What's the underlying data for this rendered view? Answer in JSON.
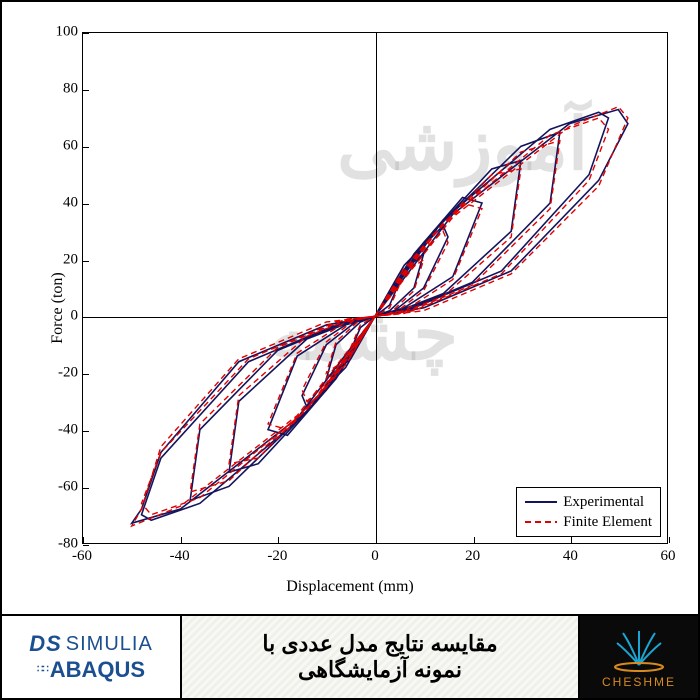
{
  "chart": {
    "type": "line",
    "xlabel": "Displacement (mm)",
    "ylabel": "Force (ton)",
    "xlabel_fontsize": 16,
    "ylabel_fontsize": 16,
    "tick_fontsize": 15,
    "xlim": [
      -60,
      60
    ],
    "ylim": [
      -80,
      100
    ],
    "xtick_step": 20,
    "ytick_step": 20,
    "xticks": [
      -60,
      -40,
      -20,
      0,
      20,
      40,
      60
    ],
    "yticks": [
      -80,
      -60,
      -40,
      -20,
      0,
      20,
      40,
      60,
      80,
      100
    ],
    "background_color": "#ffffff",
    "axis_color": "#000000",
    "border_color": "#000000",
    "grid": false,
    "watermark": {
      "line1": "آموزشی",
      "line2": "چشمه",
      "color": "rgba(170,170,170,0.35)",
      "fontsize": 72
    },
    "legend": {
      "position": "bottom-right",
      "border_color": "#000000",
      "items": [
        {
          "label": "Experimental",
          "color": "#14145c",
          "style": "solid",
          "width": 1.6
        },
        {
          "label": "Finite Element",
          "color": "#e00000",
          "style": "dashed",
          "width": 1.4
        }
      ]
    },
    "series": [
      {
        "name": "Experimental",
        "color": "#14145c",
        "style": "solid",
        "width": 1.6,
        "loops": [
          [
            [
              0,
              0
            ],
            [
              3,
              8
            ],
            [
              5,
              12
            ],
            [
              3,
              4
            ],
            [
              0,
              0
            ],
            [
              -3,
              -8
            ],
            [
              -5,
              -12
            ],
            [
              -3,
              -4
            ],
            [
              0,
              0
            ]
          ],
          [
            [
              0,
              0
            ],
            [
              5,
              15
            ],
            [
              10,
              22
            ],
            [
              8,
              10
            ],
            [
              3,
              2
            ],
            [
              0,
              0
            ],
            [
              -5,
              -15
            ],
            [
              -10,
              -22
            ],
            [
              -8,
              -10
            ],
            [
              -3,
              -2
            ],
            [
              0,
              0
            ]
          ],
          [
            [
              0,
              0
            ],
            [
              6,
              18
            ],
            [
              14,
              32
            ],
            [
              15,
              28
            ],
            [
              10,
              10
            ],
            [
              4,
              2
            ],
            [
              0,
              0
            ],
            [
              -6,
              -18
            ],
            [
              -14,
              -32
            ],
            [
              -15,
              -28
            ],
            [
              -10,
              -10
            ],
            [
              -4,
              -2
            ],
            [
              0,
              0
            ]
          ],
          [
            [
              0,
              0
            ],
            [
              8,
              22
            ],
            [
              18,
              42
            ],
            [
              22,
              40
            ],
            [
              16,
              14
            ],
            [
              6,
              3
            ],
            [
              0,
              0
            ],
            [
              -8,
              -22
            ],
            [
              -18,
              -42
            ],
            [
              -22,
              -40
            ],
            [
              -16,
              -14
            ],
            [
              -6,
              -3
            ],
            [
              0,
              0
            ]
          ],
          [
            [
              0,
              0
            ],
            [
              10,
              26
            ],
            [
              24,
              52
            ],
            [
              30,
              55
            ],
            [
              28,
              30
            ],
            [
              14,
              8
            ],
            [
              5,
              2
            ],
            [
              0,
              0
            ],
            [
              -10,
              -26
            ],
            [
              -24,
              -52
            ],
            [
              -30,
              -55
            ],
            [
              -28,
              -30
            ],
            [
              -14,
              -8
            ],
            [
              -5,
              -2
            ],
            [
              0,
              0
            ]
          ],
          [
            [
              0,
              0
            ],
            [
              12,
              30
            ],
            [
              30,
              60
            ],
            [
              38,
              65
            ],
            [
              36,
              40
            ],
            [
              20,
              12
            ],
            [
              6,
              2
            ],
            [
              0,
              0
            ],
            [
              -12,
              -30
            ],
            [
              -30,
              -60
            ],
            [
              -38,
              -65
            ],
            [
              -36,
              -40
            ],
            [
              -20,
              -12
            ],
            [
              -6,
              -2
            ],
            [
              0,
              0
            ]
          ],
          [
            [
              0,
              0
            ],
            [
              14,
              34
            ],
            [
              36,
              66
            ],
            [
              46,
              72
            ],
            [
              48,
              70
            ],
            [
              44,
              50
            ],
            [
              26,
              16
            ],
            [
              8,
              3
            ],
            [
              0,
              0
            ],
            [
              -14,
              -34
            ],
            [
              -36,
              -66
            ],
            [
              -46,
              -72
            ],
            [
              -48,
              -70
            ],
            [
              -44,
              -50
            ],
            [
              -26,
              -16
            ],
            [
              -8,
              -3
            ],
            [
              0,
              0
            ]
          ],
          [
            [
              0,
              0
            ],
            [
              16,
              36
            ],
            [
              40,
              68
            ],
            [
              50,
              73
            ],
            [
              52,
              68
            ],
            [
              46,
              48
            ],
            [
              28,
              16
            ],
            [
              10,
              3
            ],
            [
              0,
              0
            ],
            [
              -16,
              -36
            ],
            [
              -40,
              -68
            ],
            [
              -50,
              -73
            ],
            [
              -48,
              -68
            ],
            [
              -44,
              -48
            ],
            [
              -28,
              -16
            ],
            [
              -10,
              -3
            ],
            [
              0,
              0
            ]
          ]
        ]
      },
      {
        "name": "Finite Element",
        "color": "#e00000",
        "style": "dashed",
        "width": 1.4,
        "loops": [
          [
            [
              0,
              0
            ],
            [
              3,
              7
            ],
            [
              5,
              11
            ],
            [
              3,
              3
            ],
            [
              0,
              0
            ],
            [
              -3,
              -7
            ],
            [
              -5,
              -11
            ],
            [
              -3,
              -3
            ],
            [
              0,
              0
            ]
          ],
          [
            [
              0,
              0
            ],
            [
              5,
              14
            ],
            [
              10,
              20
            ],
            [
              8,
              9
            ],
            [
              3,
              1
            ],
            [
              0,
              0
            ],
            [
              -5,
              -14
            ],
            [
              -10,
              -20
            ],
            [
              -8,
              -9
            ],
            [
              -3,
              -1
            ],
            [
              0,
              0
            ]
          ],
          [
            [
              0,
              0
            ],
            [
              6,
              17
            ],
            [
              14,
              30
            ],
            [
              15,
              26
            ],
            [
              10,
              9
            ],
            [
              4,
              1
            ],
            [
              0,
              0
            ],
            [
              -6,
              -17
            ],
            [
              -14,
              -30
            ],
            [
              -15,
              -26
            ],
            [
              -10,
              -9
            ],
            [
              -4,
              -1
            ],
            [
              0,
              0
            ]
          ],
          [
            [
              0,
              0
            ],
            [
              8,
              21
            ],
            [
              18,
              40
            ],
            [
              22,
              38
            ],
            [
              16,
              13
            ],
            [
              6,
              2
            ],
            [
              0,
              0
            ],
            [
              -8,
              -21
            ],
            [
              -18,
              -40
            ],
            [
              -22,
              -38
            ],
            [
              -16,
              -13
            ],
            [
              -6,
              -2
            ],
            [
              0,
              0
            ]
          ],
          [
            [
              0,
              0
            ],
            [
              10,
              25
            ],
            [
              24,
              50
            ],
            [
              30,
              52
            ],
            [
              28,
              28
            ],
            [
              14,
              7
            ],
            [
              5,
              1
            ],
            [
              0,
              0
            ],
            [
              -10,
              -25
            ],
            [
              -24,
              -50
            ],
            [
              -30,
              -52
            ],
            [
              -28,
              -28
            ],
            [
              -14,
              -7
            ],
            [
              -5,
              -1
            ],
            [
              0,
              0
            ]
          ],
          [
            [
              0,
              0
            ],
            [
              12,
              29
            ],
            [
              30,
              58
            ],
            [
              38,
              62
            ],
            [
              36,
              38
            ],
            [
              20,
              11
            ],
            [
              6,
              1
            ],
            [
              0,
              0
            ],
            [
              -12,
              -29
            ],
            [
              -30,
              -58
            ],
            [
              -38,
              -62
            ],
            [
              -36,
              -38
            ],
            [
              -20,
              -11
            ],
            [
              -6,
              -1
            ],
            [
              0,
              0
            ]
          ],
          [
            [
              0,
              0
            ],
            [
              14,
              33
            ],
            [
              36,
              64
            ],
            [
              46,
              70
            ],
            [
              48,
              66
            ],
            [
              44,
              48
            ],
            [
              26,
              15
            ],
            [
              8,
              2
            ],
            [
              0,
              0
            ],
            [
              -14,
              -33
            ],
            [
              -36,
              -64
            ],
            [
              -46,
              -70
            ],
            [
              -48,
              -66
            ],
            [
              -44,
              -48
            ],
            [
              -26,
              -15
            ],
            [
              -8,
              -2
            ],
            [
              0,
              0
            ]
          ],
          [
            [
              0,
              0
            ],
            [
              16,
              35
            ],
            [
              40,
              67
            ],
            [
              50,
              74
            ],
            [
              52,
              70
            ],
            [
              46,
              46
            ],
            [
              28,
              15
            ],
            [
              10,
              2
            ],
            [
              0,
              0
            ],
            [
              -16,
              -35
            ],
            [
              -40,
              -67
            ],
            [
              -50,
              -74
            ],
            [
              -48,
              -68
            ],
            [
              -44,
              -46
            ],
            [
              -28,
              -15
            ],
            [
              -10,
              -2
            ],
            [
              0,
              0
            ]
          ]
        ]
      }
    ]
  },
  "footer": {
    "simulia_prefix": "DS",
    "simulia_label": "SIMULIA",
    "abaqus_label": "ABAQUS",
    "simulia_color": "#1b4f8f",
    "title_line1": "مقایسه نتایج مدل عددی با",
    "title_line2": "نمونه آزمایشگاهی",
    "title_fontsize": 22,
    "cheshme_label": "CHESHME",
    "cheshme_color": "#d88a1e",
    "cheshme_bg": "#0a0a0a",
    "cheshme_accent": "#1aa6d4"
  }
}
